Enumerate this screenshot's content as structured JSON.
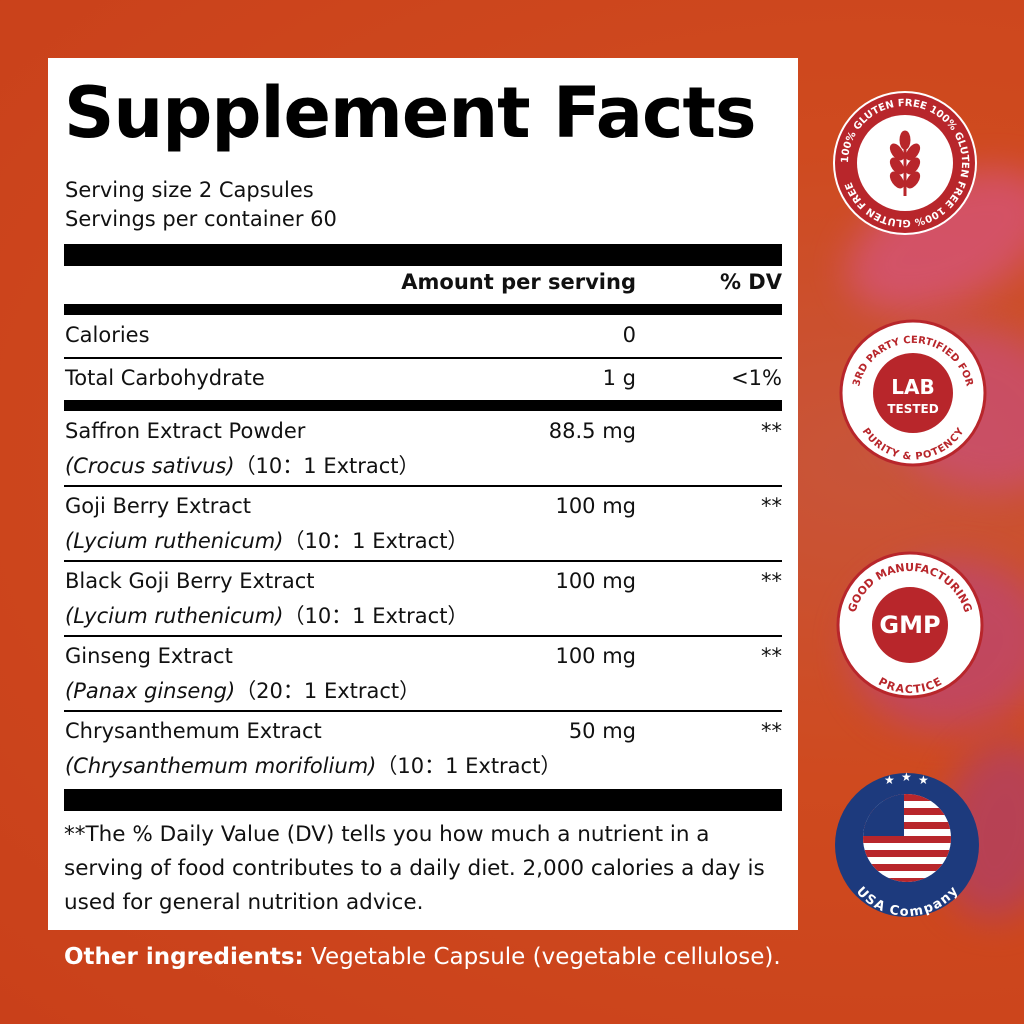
{
  "title": "Supplement Facts",
  "serving_size": "Serving size 2 Capsules",
  "servings_per_container": "Servings per container 60",
  "header": {
    "amount": "Amount per serving",
    "dv": "% DV"
  },
  "nutrients": [
    {
      "name": "Calories",
      "amount": "0",
      "dv": ""
    },
    {
      "name": "Total Carbohydrate",
      "amount": "1 g",
      "dv": "<1%"
    }
  ],
  "ingredients": [
    {
      "name": "Saffron Extract Powder",
      "latin": "(Crocus sativus)",
      "ratio": "（10：1 Extract）",
      "amount": "88.5 mg",
      "dv": "**"
    },
    {
      "name": "Goji Berry Extract",
      "latin": "(Lycium ruthenicum)",
      "ratio": "（10：1 Extract）",
      "amount": "100 mg",
      "dv": "**"
    },
    {
      "name": "Black Goji Berry Extract",
      "latin": "(Lycium ruthenicum)",
      "ratio": "（10：1 Extract）",
      "amount": "100 mg",
      "dv": "**"
    },
    {
      "name": "Ginseng Extract",
      "latin": "(Panax ginseng)",
      "ratio": "（20：1 Extract）",
      "amount": "100 mg",
      "dv": "**"
    },
    {
      "name": "Chrysanthemum Extract",
      "latin": "(Chrysanthemum morifolium)",
      "ratio": "（10：1 Extract）",
      "amount": "50 mg",
      "dv": "**"
    }
  ],
  "footnote": "**The % Daily Value (DV) tells you how much a nutrient in a serving of food contributes to a daily diet. 2,000 calories a day is used for general nutrition advice.",
  "other_label": "Other ingredients:",
  "other_text": " Vegetable Capsule (vegetable cellulose).",
  "badges": {
    "gluten": {
      "ring_text": "100% GLUTEN FREE  100% GLUTEN FREE  100% GLUTEN FREE",
      "icon": "wheat-icon"
    },
    "lab": {
      "top": "3RD PARTY CERTIFIED FOR",
      "bottom": "PURITY & POTENCY",
      "line1": "LAB",
      "line2": "TESTED"
    },
    "gmp": {
      "top": "GOOD MANUFACTURING",
      "bottom": "PRACTICE",
      "center": "GMP"
    },
    "usa": {
      "text": "USA Company",
      "icon": "us-flag-icon"
    }
  },
  "colors": {
    "background": "#cc4a1e",
    "badge_red": "#b8262b",
    "usa_blue": "#1d3a7d"
  }
}
